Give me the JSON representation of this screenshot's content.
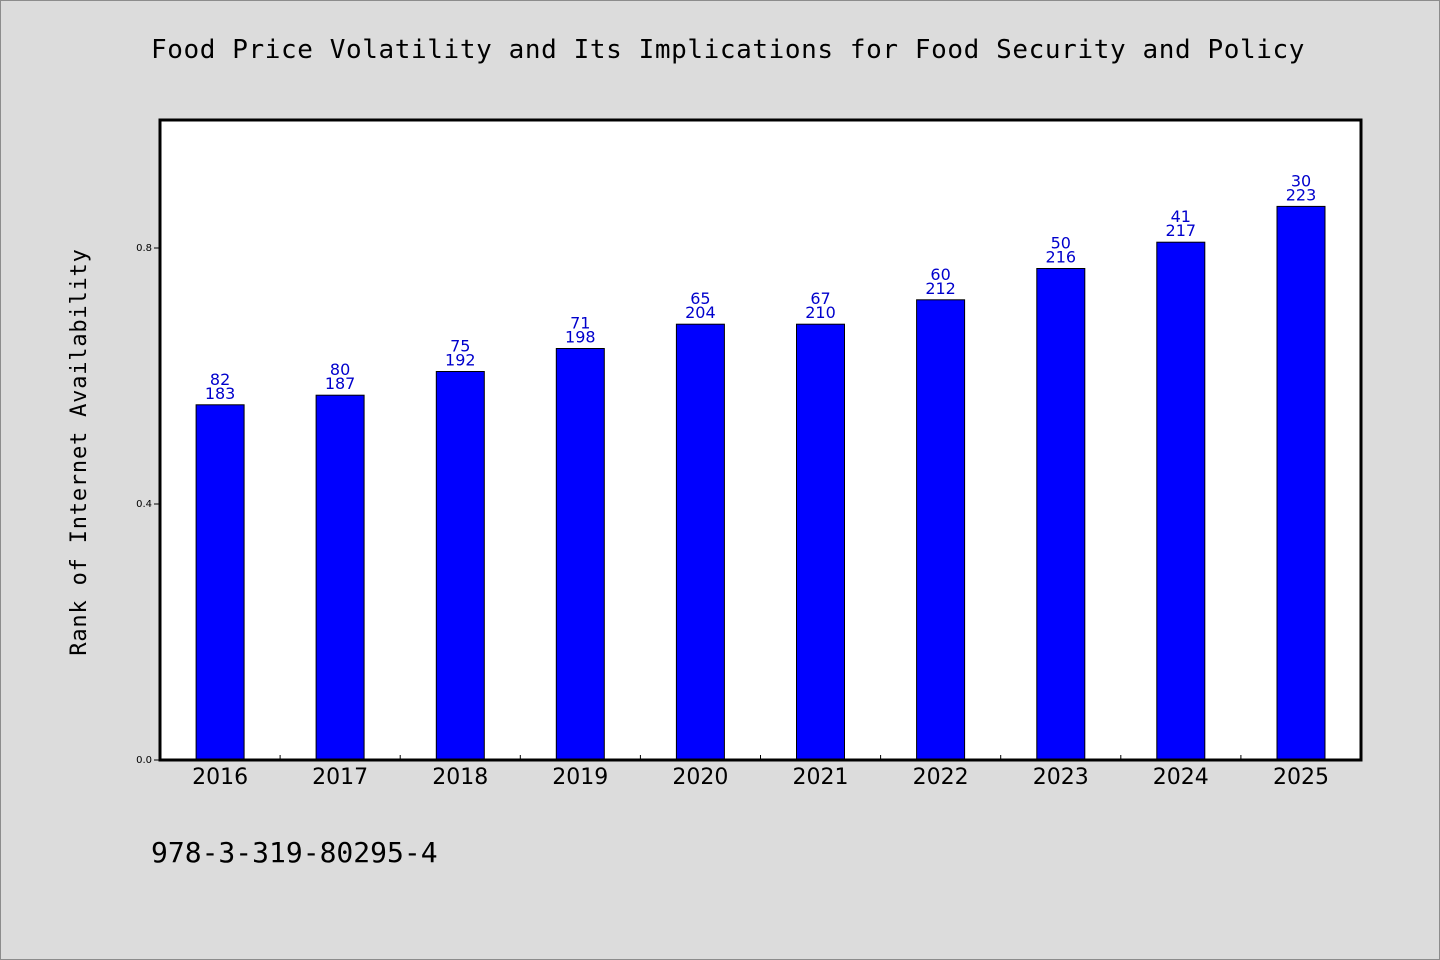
{
  "title": "Food Price Volatility and Its Implications for Food Security and Policy",
  "footer_text": "978-3-319-80295-4",
  "colors": {
    "background": "#dcdcdc",
    "plot_background": "#ffffff",
    "bar": "#0000ff",
    "label": "#0000cc"
  },
  "chart_data": {
    "type": "bar",
    "title": "Food Price Volatility and Its Implications for Food Security and Policy",
    "xlabel": "",
    "ylabel": "Rank of Internet Availability",
    "categories": [
      "2016",
      "2017",
      "2018",
      "2019",
      "2020",
      "2021",
      "2022",
      "2023",
      "2024",
      "2025"
    ],
    "values": [
      0.555,
      0.57,
      0.607,
      0.643,
      0.681,
      0.681,
      0.719,
      0.768,
      0.809,
      0.865
    ],
    "bar_labels": [
      [
        "82",
        "183"
      ],
      [
        "80",
        "187"
      ],
      [
        "75",
        "192"
      ],
      [
        "71",
        "198"
      ],
      [
        "65",
        "204"
      ],
      [
        "67",
        "210"
      ],
      [
        "60",
        "212"
      ],
      [
        "50",
        "216"
      ],
      [
        "41",
        "217"
      ],
      [
        "30",
        "223"
      ]
    ],
    "ylim": [
      0,
      1.0
    ],
    "yticks": [
      0.0,
      0.4,
      0.8
    ],
    "ytick_labels": [
      "0.0",
      "0.4",
      "0.8"
    ],
    "grid": false,
    "legend": "none"
  }
}
